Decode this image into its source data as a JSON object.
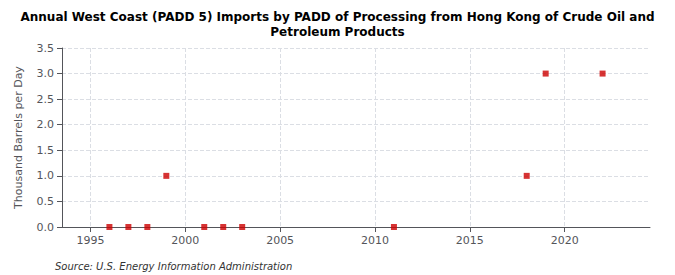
{
  "chart_data": {
    "type": "scatter",
    "title": "Annual West Coast (PADD 5) Imports by PADD of Processing from Hong Kong of Crude Oil and\nPetroleum Products",
    "y_label": "Thousand Barrels per Day",
    "annotations": [
      "Source: U.S. Energy Information Administration"
    ],
    "x": [
      1996,
      1997,
      1998,
      1999,
      2001,
      2002,
      2003,
      2011,
      2018,
      2019,
      2022
    ],
    "values": [
      0.0,
      0.0,
      0.0,
      1.0,
      0.0,
      0.0,
      0.0,
      0.0,
      1.0,
      3.0,
      3.0
    ],
    "color": "#cc0000",
    "marker": "square",
    "xlim": [
      1993.5,
      2024.5
    ],
    "xticks": [
      1995,
      2000,
      2005,
      2010,
      2015,
      2020
    ],
    "ylim": [
      0.0,
      3.5
    ],
    "yticks": [
      {
        "value": 0.0,
        "label": "0.0"
      },
      0.5,
      {
        "value": 1.0,
        "label": "1.0"
      },
      1.5,
      {
        "value": 2.0,
        "label": "2.0"
      },
      2.5,
      {
        "value": 3.0,
        "label": "3.0"
      },
      3.5
    ],
    "grid": true
  }
}
